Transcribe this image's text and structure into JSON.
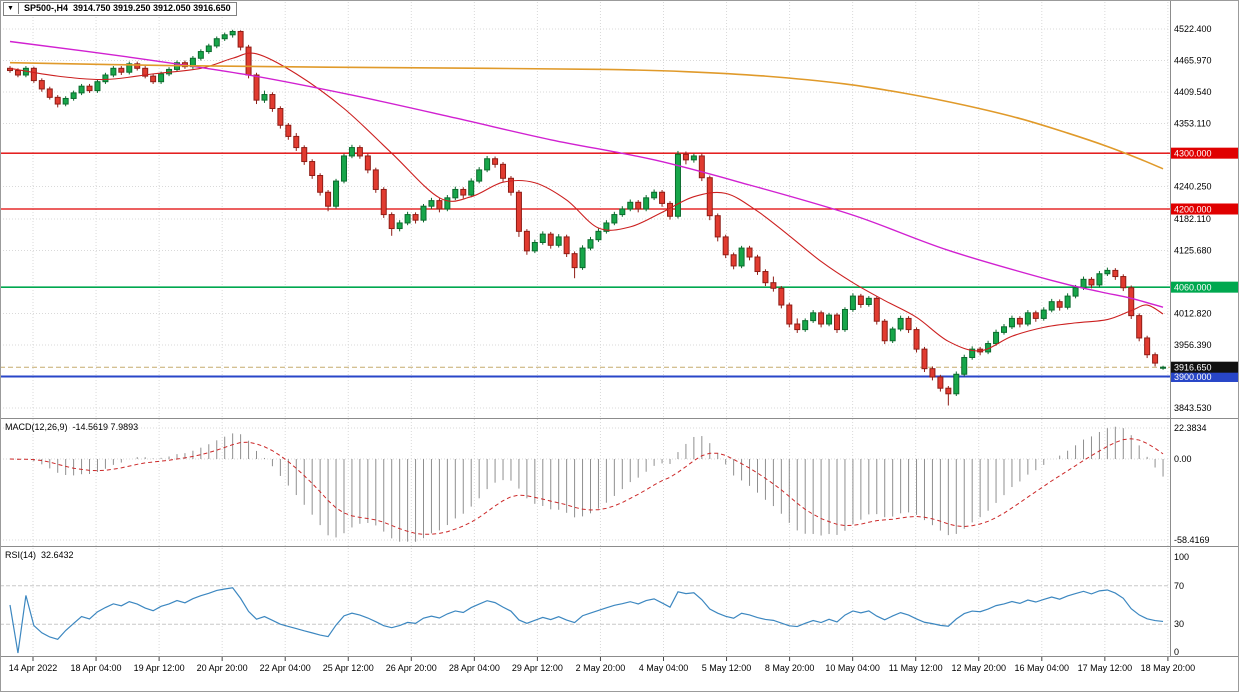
{
  "header": {
    "arrow": "▼",
    "symbol_tf": "SP500-,H4",
    "ohlc": "3914.750 3919.250 3912.050 3916.650"
  },
  "colors": {
    "bull": "#17a64a",
    "bullStroke": "#0b6b2d",
    "bear": "#e13b30",
    "bearStroke": "#8f1d16",
    "maFast": "#cc2020",
    "maMid": "#d121d1",
    "maSlow": "#e09a2a",
    "grid": "#d9d9d9",
    "histogram": "#8f8f8f",
    "signal": "#cc2929",
    "rsi": "#3c87c0",
    "axisText": "#000000",
    "panelBorder": "#8c8c8c"
  },
  "chart_data": {
    "type": "candlestick",
    "title": "SP500-,H4",
    "timeframe": "H4",
    "last_ohlc": {
      "open": 3914.75,
      "high": 3919.25,
      "low": 3912.05,
      "close": 3916.65
    },
    "price_axis": {
      "y_top": 4522.4,
      "y_bottom": 3843.53,
      "labels": [
        {
          "text": "4522.400",
          "price": 4522.4
        },
        {
          "text": "4465.970",
          "price": 4465.97
        },
        {
          "text": "4409.540",
          "price": 4409.54
        },
        {
          "text": "4353.110",
          "price": 4353.11
        },
        {
          "text": "4240.250",
          "price": 4240.25
        },
        {
          "text": "4182.110",
          "price": 4182.11
        },
        {
          "text": "4125.680",
          "price": 4125.68
        },
        {
          "text": "4012.820",
          "price": 4012.82
        },
        {
          "text": "3956.390",
          "price": 3956.39
        },
        {
          "text": "3843.530",
          "price": 3843.53
        }
      ]
    },
    "time_labels": [
      "14 Apr 2022",
      "18 Apr 04:00",
      "19 Apr 12:00",
      "20 Apr 20:00",
      "22 Apr 04:00",
      "25 Apr 12:00",
      "26 Apr 20:00",
      "28 Apr 04:00",
      "29 Apr 12:00",
      "2 May 20:00",
      "4 May 04:00",
      "5 May 12:00",
      "8 May 20:00",
      "10 May 04:00",
      "11 May 12:00",
      "12 May 20:00",
      "16 May 04:00",
      "17 May 12:00",
      "18 May 20:00"
    ],
    "levels": [
      {
        "label": "4300.000",
        "price": 4300,
        "color": "#e00000",
        "width": 1.3
      },
      {
        "label": "4200.000",
        "price": 4200,
        "color": "#e00000",
        "width": 1.3
      },
      {
        "label": "4060.000",
        "price": 4060,
        "color": "#00a84f",
        "width": 1.6
      },
      {
        "label": "3900.000",
        "price": 3900,
        "color": "#2846c8",
        "width": 2
      }
    ],
    "bid": {
      "label": "3916.650",
      "price": 3916.65,
      "line_color": "#c5ab6f",
      "badge_color": "#111111"
    },
    "candles": [
      [
        4452,
        4456,
        4444,
        4448
      ],
      [
        4448,
        4452,
        4436,
        4440
      ],
      [
        4440,
        4456,
        4436,
        4452
      ],
      [
        4452,
        4455,
        4426,
        4430
      ],
      [
        4430,
        4434,
        4410,
        4415
      ],
      [
        4415,
        4419,
        4396,
        4400
      ],
      [
        4400,
        4404,
        4382,
        4388
      ],
      [
        4388,
        4402,
        4384,
        4398
      ],
      [
        4398,
        4412,
        4394,
        4408
      ],
      [
        4408,
        4424,
        4404,
        4420
      ],
      [
        4420,
        4424,
        4408,
        4412
      ],
      [
        4412,
        4432,
        4408,
        4428
      ],
      [
        4428,
        4444,
        4424,
        4440
      ],
      [
        4440,
        4456,
        4436,
        4452
      ],
      [
        4452,
        4456,
        4440,
        4445
      ],
      [
        4445,
        4464,
        4441,
        4460
      ],
      [
        4460,
        4464,
        4448,
        4452
      ],
      [
        4452,
        4456,
        4434,
        4438
      ],
      [
        4438,
        4442,
        4424,
        4428
      ],
      [
        4428,
        4446,
        4424,
        4442
      ],
      [
        4442,
        4454,
        4438,
        4450
      ],
      [
        4450,
        4466,
        4446,
        4462
      ],
      [
        4462,
        4466,
        4451,
        4455
      ],
      [
        4455,
        4474,
        4451,
        4470
      ],
      [
        4470,
        4486,
        4466,
        4482
      ],
      [
        4482,
        4496,
        4478,
        4492
      ],
      [
        4492,
        4509,
        4488,
        4505
      ],
      [
        4505,
        4516,
        4501,
        4512
      ],
      [
        4512,
        4521,
        4507,
        4518
      ],
      [
        4518,
        4520,
        4484,
        4490
      ],
      [
        4490,
        4494,
        4434,
        4440
      ],
      [
        4440,
        4444,
        4388,
        4395
      ],
      [
        4395,
        4412,
        4390,
        4405
      ],
      [
        4405,
        4409,
        4374,
        4380
      ],
      [
        4380,
        4384,
        4344,
        4350
      ],
      [
        4350,
        4354,
        4324,
        4330
      ],
      [
        4330,
        4336,
        4304,
        4310
      ],
      [
        4310,
        4314,
        4279,
        4285
      ],
      [
        4285,
        4289,
        4254,
        4260
      ],
      [
        4260,
        4264,
        4224,
        4230
      ],
      [
        4230,
        4234,
        4196,
        4205
      ],
      [
        4205,
        4254,
        4201,
        4250
      ],
      [
        4250,
        4299,
        4246,
        4295
      ],
      [
        4295,
        4315,
        4291,
        4310
      ],
      [
        4310,
        4314,
        4290,
        4295
      ],
      [
        4295,
        4299,
        4264,
        4270
      ],
      [
        4270,
        4274,
        4229,
        4235
      ],
      [
        4235,
        4239,
        4184,
        4190
      ],
      [
        4190,
        4194,
        4152,
        4165
      ],
      [
        4165,
        4180,
        4160,
        4175
      ],
      [
        4175,
        4195,
        4171,
        4190
      ],
      [
        4190,
        4194,
        4174,
        4180
      ],
      [
        4180,
        4209,
        4176,
        4205
      ],
      [
        4205,
        4220,
        4200,
        4215
      ],
      [
        4215,
        4219,
        4194,
        4200
      ],
      [
        4200,
        4225,
        4196,
        4220
      ],
      [
        4220,
        4240,
        4216,
        4235
      ],
      [
        4235,
        4239,
        4219,
        4225
      ],
      [
        4225,
        4255,
        4221,
        4250
      ],
      [
        4250,
        4275,
        4246,
        4270
      ],
      [
        4270,
        4295,
        4266,
        4290
      ],
      [
        4290,
        4294,
        4274,
        4280
      ],
      [
        4280,
        4284,
        4249,
        4255
      ],
      [
        4255,
        4259,
        4224,
        4230
      ],
      [
        4230,
        4234,
        4150,
        4160
      ],
      [
        4160,
        4164,
        4118,
        4125
      ],
      [
        4125,
        4145,
        4121,
        4140
      ],
      [
        4140,
        4160,
        4136,
        4155
      ],
      [
        4155,
        4159,
        4129,
        4135
      ],
      [
        4135,
        4155,
        4131,
        4150
      ],
      [
        4150,
        4154,
        4114,
        4120
      ],
      [
        4120,
        4124,
        4076,
        4095
      ],
      [
        4095,
        4135,
        4091,
        4130
      ],
      [
        4130,
        4150,
        4126,
        4145
      ],
      [
        4145,
        4165,
        4141,
        4160
      ],
      [
        4160,
        4180,
        4156,
        4175
      ],
      [
        4175,
        4195,
        4171,
        4190
      ],
      [
        4190,
        4205,
        4186,
        4200
      ],
      [
        4200,
        4217,
        4196,
        4212
      ],
      [
        4212,
        4216,
        4194,
        4200
      ],
      [
        4200,
        4225,
        4196,
        4220
      ],
      [
        4220,
        4235,
        4216,
        4230
      ],
      [
        4230,
        4234,
        4204,
        4210
      ],
      [
        4210,
        4214,
        4181,
        4187
      ],
      [
        4187,
        4304,
        4183,
        4298
      ],
      [
        4298,
        4303,
        4280,
        4288
      ],
      [
        4288,
        4299,
        4283,
        4295
      ],
      [
        4295,
        4299,
        4250,
        4256
      ],
      [
        4256,
        4260,
        4180,
        4188
      ],
      [
        4188,
        4192,
        4142,
        4150
      ],
      [
        4150,
        4154,
        4112,
        4118
      ],
      [
        4118,
        4122,
        4092,
        4098
      ],
      [
        4098,
        4134,
        4094,
        4130
      ],
      [
        4130,
        4134,
        4108,
        4114
      ],
      [
        4114,
        4118,
        4082,
        4088
      ],
      [
        4088,
        4092,
        4062,
        4068
      ],
      [
        4068,
        4079,
        4052,
        4058
      ],
      [
        4058,
        4062,
        4022,
        4028
      ],
      [
        4028,
        4032,
        3988,
        3994
      ],
      [
        3994,
        4004,
        3978,
        3984
      ],
      [
        3984,
        4004,
        3980,
        4000
      ],
      [
        4000,
        4019,
        3996,
        4014
      ],
      [
        4014,
        4018,
        3988,
        3994
      ],
      [
        3994,
        4014,
        3990,
        4010
      ],
      [
        4010,
        4014,
        3978,
        3984
      ],
      [
        3984,
        4024,
        3980,
        4020
      ],
      [
        4020,
        4049,
        4016,
        4044
      ],
      [
        4044,
        4048,
        4023,
        4029
      ],
      [
        4029,
        4044,
        4025,
        4040
      ],
      [
        4040,
        4044,
        3993,
        3999
      ],
      [
        3999,
        4003,
        3958,
        3964
      ],
      [
        3964,
        3989,
        3960,
        3985
      ],
      [
        3985,
        4009,
        3981,
        4004
      ],
      [
        4004,
        4008,
        3978,
        3984
      ],
      [
        3984,
        3988,
        3943,
        3949
      ],
      [
        3949,
        3953,
        3908,
        3914
      ],
      [
        3914,
        3918,
        3893,
        3899
      ],
      [
        3899,
        3903,
        3873,
        3879
      ],
      [
        3879,
        3883,
        3848,
        3869
      ],
      [
        3869,
        3909,
        3865,
        3904
      ],
      [
        3904,
        3939,
        3900,
        3934
      ],
      [
        3934,
        3954,
        3930,
        3949
      ],
      [
        3949,
        3953,
        3938,
        3944
      ],
      [
        3944,
        3964,
        3940,
        3959
      ],
      [
        3959,
        3984,
        3955,
        3979
      ],
      [
        3979,
        3994,
        3975,
        3989
      ],
      [
        3989,
        4009,
        3985,
        4004
      ],
      [
        4004,
        4008,
        3988,
        3994
      ],
      [
        3994,
        4019,
        3990,
        4014
      ],
      [
        4014,
        4018,
        3998,
        4004
      ],
      [
        4004,
        4024,
        4000,
        4019
      ],
      [
        4019,
        4039,
        4015,
        4034
      ],
      [
        4034,
        4038,
        4018,
        4024
      ],
      [
        4024,
        4049,
        4020,
        4044
      ],
      [
        4044,
        4064,
        4040,
        4059
      ],
      [
        4059,
        4079,
        4055,
        4074
      ],
      [
        4074,
        4078,
        4058,
        4064
      ],
      [
        4064,
        4089,
        4060,
        4084
      ],
      [
        4084,
        4095,
        4080,
        4090
      ],
      [
        4090,
        4094,
        4073,
        4079
      ],
      [
        4079,
        4083,
        4053,
        4059
      ],
      [
        4059,
        4063,
        4003,
        4009
      ],
      [
        4009,
        4013,
        3963,
        3969
      ],
      [
        3969,
        3973,
        3933,
        3939
      ],
      [
        3939,
        3943,
        3918,
        3924
      ],
      [
        3914.75,
        3919.25,
        3912.05,
        3916.65
      ]
    ],
    "overlays": {
      "ma_slow_orange": [
        [
          0,
          4462
        ],
        [
          20,
          4457
        ],
        [
          40,
          4454
        ],
        [
          60,
          4452
        ],
        [
          75,
          4450
        ],
        [
          85,
          4446
        ],
        [
          95,
          4438
        ],
        [
          105,
          4424
        ],
        [
          113,
          4406
        ],
        [
          120,
          4386
        ],
        [
          127,
          4362
        ],
        [
          133,
          4336
        ],
        [
          138,
          4312
        ],
        [
          142,
          4290
        ],
        [
          145,
          4272
        ]
      ],
      "ma_mid_magenta": [
        [
          0,
          4500
        ],
        [
          15,
          4472
        ],
        [
          30,
          4440
        ],
        [
          43,
          4404
        ],
        [
          56,
          4363
        ],
        [
          68,
          4324
        ],
        [
          81,
          4288
        ],
        [
          93,
          4243
        ],
        [
          106,
          4189
        ],
        [
          118,
          4126
        ],
        [
          131,
          4072
        ],
        [
          137,
          4052
        ],
        [
          141,
          4040
        ],
        [
          145,
          4024
        ]
      ],
      "ma_fast_red": [
        [
          0,
          4452
        ],
        [
          6,
          4438
        ],
        [
          12,
          4432
        ],
        [
          18,
          4442
        ],
        [
          24,
          4452
        ],
        [
          28,
          4470
        ],
        [
          31,
          4478
        ],
        [
          36,
          4442
        ],
        [
          42,
          4380
        ],
        [
          48,
          4300
        ],
        [
          54,
          4220
        ],
        [
          58,
          4222
        ],
        [
          62,
          4248
        ],
        [
          66,
          4247
        ],
        [
          70,
          4216
        ],
        [
          74,
          4166
        ],
        [
          78,
          4168
        ],
        [
          82,
          4194
        ],
        [
          86,
          4222
        ],
        [
          90,
          4228
        ],
        [
          94,
          4196
        ],
        [
          98,
          4152
        ],
        [
          102,
          4106
        ],
        [
          106,
          4068
        ],
        [
          110,
          4036
        ],
        [
          114,
          4006
        ],
        [
          118,
          3963
        ],
        [
          122,
          3946
        ],
        [
          126,
          3972
        ],
        [
          130,
          3988
        ],
        [
          134,
          3996
        ],
        [
          138,
          4002
        ],
        [
          141,
          4018
        ],
        [
          143,
          4028
        ],
        [
          145,
          4012
        ]
      ]
    },
    "indicators": {
      "macd": {
        "name": "MACD(12,26,9)",
        "values": "-14.5619 7.9893",
        "fast": 12,
        "slow": 26,
        "signal": 9,
        "axis_max": 22.3834,
        "axis_min": -58.4169,
        "axis_labels": [
          "22.3834",
          "0.00",
          "-58.4169"
        ]
      },
      "rsi": {
        "name": "RSI(14)",
        "value": "32.6432",
        "period": 14,
        "levels": [
          70,
          30
        ],
        "axis_labels": [
          "100",
          "70",
          "30",
          "0"
        ]
      }
    }
  }
}
